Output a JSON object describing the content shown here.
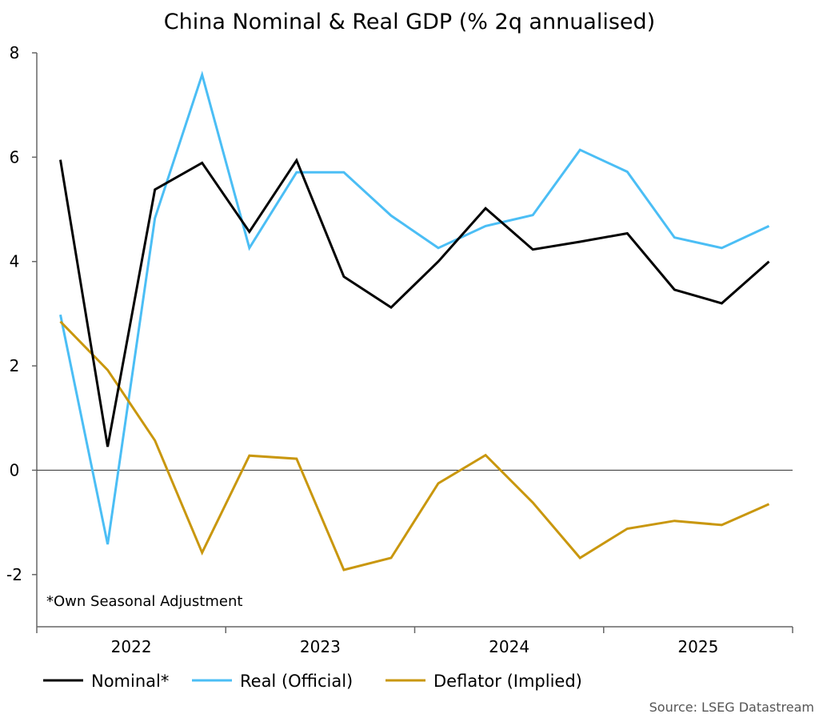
{
  "chart_data": {
    "type": "line",
    "title": "China Nominal & Real GDP (% 2q annualised)",
    "xlabel": "",
    "ylabel": "",
    "x": [
      "2022 Q1",
      "2022 Q2",
      "2022 Q3",
      "2022 Q4",
      "2023 Q1",
      "2023 Q2",
      "2023 Q3",
      "2023 Q4",
      "2024 Q1",
      "2024 Q2",
      "2024 Q3",
      "2024 Q4",
      "2025 Q1",
      "2025 Q2",
      "2025 Q3",
      "2025 Q4"
    ],
    "x_tick_labels": [
      "2022",
      "2023",
      "2024",
      "2025"
    ],
    "ylim": [
      -3,
      8
    ],
    "y_ticks": [
      8,
      6,
      4,
      2,
      0,
      -2
    ],
    "y_tick_labels": [
      "8",
      "6",
      "4",
      "2",
      "0",
      "-2"
    ],
    "grid": false,
    "zero_line": true,
    "legend_placement": "bottom",
    "series": [
      {
        "name": "Nominal*",
        "color": "#000000",
        "values": [
          5.95,
          0.45,
          5.38,
          5.89,
          4.57,
          5.94,
          3.71,
          3.12,
          4.0,
          5.02,
          4.23,
          4.38,
          4.54,
          3.46,
          3.2,
          4.0
        ]
      },
      {
        "name": "Real (Official)",
        "color": "#4BBEF5",
        "values": [
          2.98,
          -1.42,
          4.83,
          7.58,
          4.26,
          5.71,
          5.71,
          4.88,
          4.26,
          4.68,
          4.89,
          6.14,
          5.72,
          4.46,
          4.26,
          4.68
        ]
      },
      {
        "name": "Deflator (Implied)",
        "color": "#C9970E",
        "values": [
          2.85,
          1.92,
          0.57,
          -1.58,
          0.28,
          0.22,
          -1.91,
          -1.68,
          -0.25,
          0.29,
          -0.62,
          -1.68,
          -1.12,
          -0.97,
          -1.05,
          -0.65
        ]
      }
    ],
    "annotation": "*Own Seasonal Adjustment",
    "source": "Source: LSEG Datastream"
  }
}
